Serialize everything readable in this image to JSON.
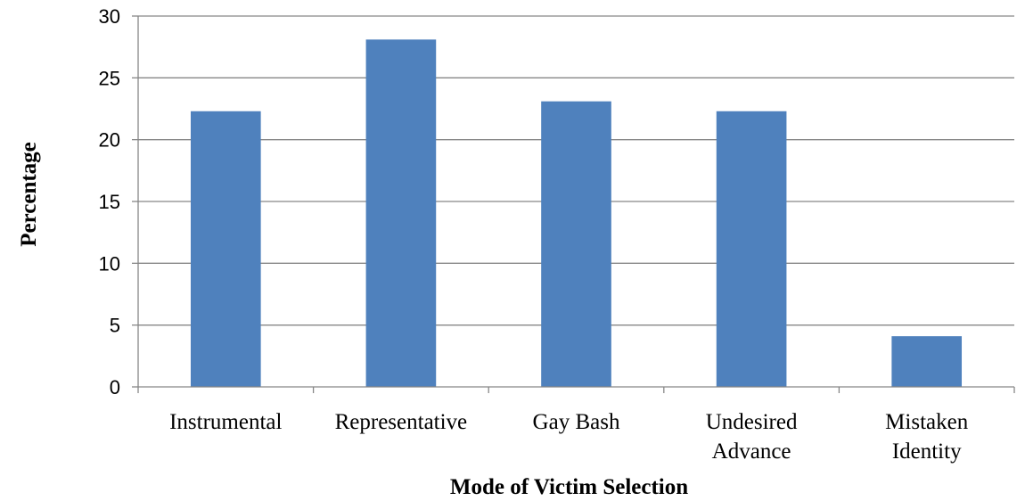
{
  "chart_data": {
    "type": "bar",
    "categories": [
      [
        "Instrumental"
      ],
      [
        "Representative"
      ],
      [
        "Gay Bash"
      ],
      [
        "Undesired",
        "Advance"
      ],
      [
        "Mistaken",
        "Identity"
      ]
    ],
    "values": [
      22.3,
      28.1,
      23.1,
      22.3,
      4.1
    ],
    "title": "",
    "xlabel": "Mode of Victim Selection",
    "ylabel": "Percentage",
    "ylim": [
      0,
      30
    ],
    "yticks": [
      0,
      5,
      10,
      15,
      20,
      25,
      30
    ],
    "grid": true,
    "legend": "none",
    "bar_color": "#4F81BD",
    "grid_color": "#878787",
    "axis_color": "#878787"
  }
}
